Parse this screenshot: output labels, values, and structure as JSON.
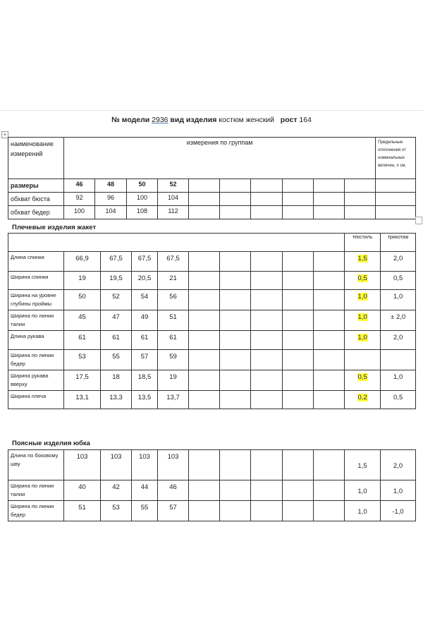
{
  "title": {
    "model_label": "№ модели",
    "model": "2936",
    "type_label": "вид изделия",
    "type": "костюм женский",
    "height_label": "рост",
    "height": "164"
  },
  "sizes_table": {
    "header_name": "наименование измерений",
    "header_groups": "измерения по группам",
    "header_tolerance": "Предельные отклонения от номинальных величин, ± см.",
    "rows": [
      {
        "label": "размеры",
        "values": [
          "46",
          "48",
          "50",
          "52"
        ],
        "bold": true
      },
      {
        "label": "обхват бюста",
        "values": [
          "92",
          "96",
          "100",
          "104"
        ]
      },
      {
        "label": "обхват бедер",
        "values": [
          "100",
          "104",
          "108",
          "112"
        ]
      }
    ]
  },
  "jacket": {
    "heading": "Плечевые изделия жакет",
    "col_textile": "текстиль",
    "col_knit": "трикотаж",
    "rows": [
      {
        "label": "Длина спинки",
        "values": [
          "66,9",
          "67,5",
          "67,5",
          "67,5"
        ],
        "textile": "1,5",
        "knit": "2,0",
        "highlight": true
      },
      {
        "label": "Ширина спинки",
        "values": [
          "19",
          "19,5",
          "20,5",
          "21"
        ],
        "textile": "0,5",
        "knit": "0,5",
        "highlight": true
      },
      {
        "label": "Ширина на уровне глубины проймы",
        "values": [
          "50",
          "52",
          "54",
          "56"
        ],
        "textile": "1,0",
        "knit": "1,0",
        "highlight": true
      },
      {
        "label": "Ширина по линии талии",
        "values": [
          "45",
          "47",
          "49",
          "51"
        ],
        "textile": "1,0",
        "knit": "± 2,0",
        "highlight": true
      },
      {
        "label": "Длина рукава",
        "values": [
          "61",
          "61",
          "61",
          "61"
        ],
        "textile": "1,0",
        "knit": "2,0",
        "highlight": true
      },
      {
        "label": "Ширина по линии бедер",
        "values": [
          "53",
          "55",
          "57",
          "59"
        ],
        "textile": "",
        "knit": "",
        "highlight": false
      },
      {
        "label": "Ширина рукава вверху",
        "values": [
          "17,5",
          "18",
          "18,5",
          "19"
        ],
        "textile": "0,5",
        "knit": "1,0",
        "highlight": true
      },
      {
        "label": "Ширина плеча",
        "values": [
          "13,1",
          "13,3",
          "13,5",
          "13,7"
        ],
        "textile": "0,2",
        "knit": "0,5",
        "highlight": true
      }
    ]
  },
  "skirt": {
    "heading": "Поясные изделия юбка",
    "rows": [
      {
        "label": "Длина по боковому шву",
        "values": [
          "103",
          "103",
          "103",
          "103"
        ],
        "textile": "1,5",
        "knit": "2,0"
      },
      {
        "label": "Ширина по линии талии",
        "values": [
          "40",
          "42",
          "44",
          "46"
        ],
        "textile": "1,0",
        "knit": "1,0"
      },
      {
        "label": "Ширина по линии бедер",
        "values": [
          "51",
          "53",
          "55",
          "57"
        ],
        "textile": "1,0",
        "knit": "-1,0"
      }
    ]
  },
  "colors": {
    "highlight": "#ffff3a",
    "border": "#333333"
  }
}
